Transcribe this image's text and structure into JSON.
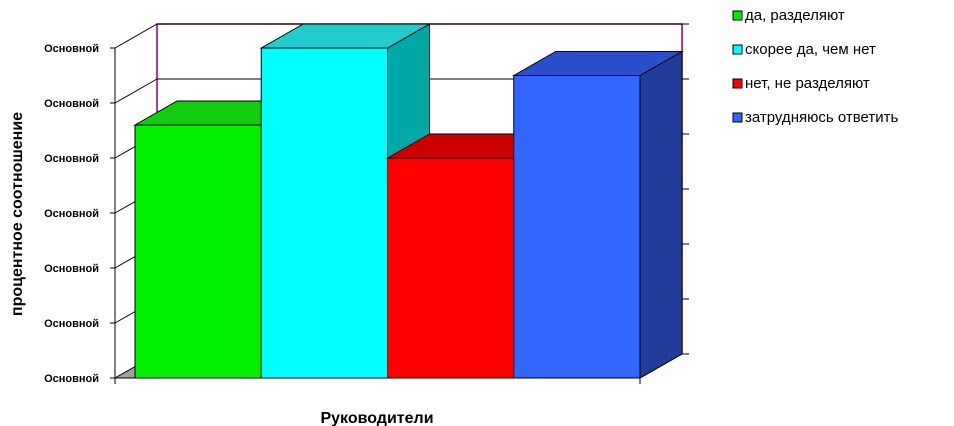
{
  "chart_data": {
    "type": "bar",
    "categories": [
      "Руководители"
    ],
    "series": [
      {
        "name": "да, разделяют",
        "values": [
          46
        ],
        "color": "#00ee00",
        "side": "#00aa00",
        "top": "#11cc11"
      },
      {
        "name": "скорее да, чем нет",
        "values": [
          60
        ],
        "color": "#00ffff",
        "side": "#00a8a8",
        "top": "#22cccc"
      },
      {
        "name": "нет, не разделяют",
        "values": [
          40
        ],
        "color": "#ff0000",
        "side": "#aa0000",
        "top": "#cc0000"
      },
      {
        "name": "затрудняюсь ответить",
        "values": [
          55
        ],
        "color": "#3366ff",
        "side": "#1f3d99",
        "top": "#2a4fcc"
      }
    ],
    "ylabel": "процентное соотношение",
    "xlabel": "Руководители",
    "ytick_labels": [
      "Основной",
      "Основной",
      "Основной",
      "Основной",
      "Основной",
      "Основной",
      "Основной"
    ],
    "ylim": [
      0,
      60
    ],
    "legend_position": "top-right",
    "grid": true,
    "wall_border_color": "#800080",
    "floor_color": "#a0a0a0"
  }
}
